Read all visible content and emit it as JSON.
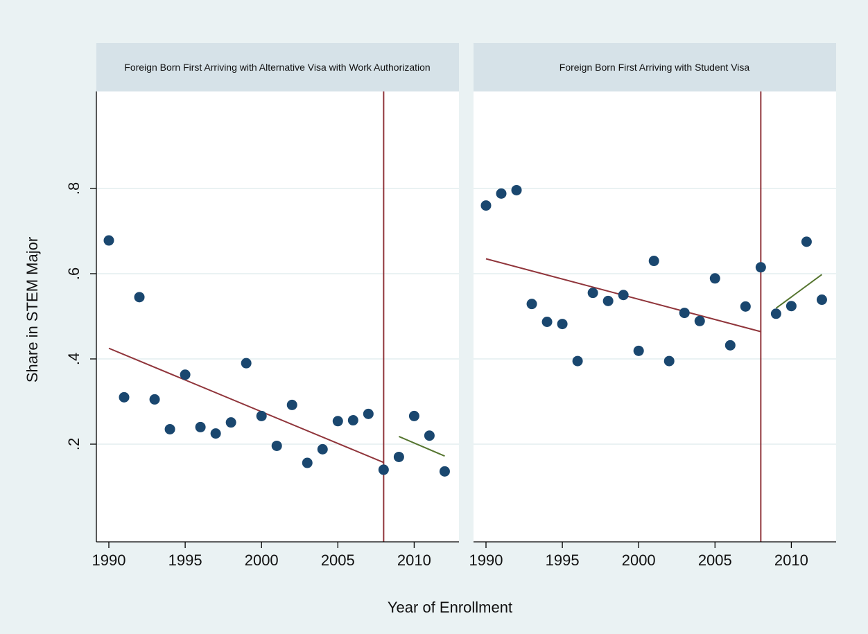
{
  "colors": {
    "figure_bg": "#eaf2f3",
    "panel_bg": "#ffffff",
    "header_bg": "#d6e2e8",
    "gridline": "#eaf2f3",
    "points": "#1a476f",
    "pre_fit": "#90353b",
    "post_fit": "#55752f",
    "cutoff_line": "#90353b"
  },
  "chart_data": {
    "type": "scatter",
    "ylabel": "Share in STEM Major",
    "xlabel": "Year of Enrollment",
    "y_ticks": [
      0.2,
      0.4,
      0.6,
      0.8
    ],
    "y_tick_labels": [
      ".2",
      ".4",
      ".6",
      ".8"
    ],
    "x_ticks": [
      1990,
      1995,
      2000,
      2005,
      2010
    ],
    "x_tick_labels": [
      "1990",
      "1995",
      "2000",
      "2005",
      "2010"
    ],
    "xlim": [
      1989.5,
      2012.5
    ],
    "ylim": [
      0.0,
      1.0
    ],
    "grid": true,
    "cutoff_year": 2008,
    "panels": [
      {
        "title": "Foreign Born First Arriving with Alternative Visa with Work Authorization",
        "points": [
          {
            "x": 1990,
            "y": 0.678
          },
          {
            "x": 1991,
            "y": 0.31
          },
          {
            "x": 1992,
            "y": 0.545
          },
          {
            "x": 1993,
            "y": 0.305
          },
          {
            "x": 1994,
            "y": 0.235
          },
          {
            "x": 1995,
            "y": 0.363
          },
          {
            "x": 1996,
            "y": 0.24
          },
          {
            "x": 1997,
            "y": 0.225
          },
          {
            "x": 1998,
            "y": 0.251
          },
          {
            "x": 1999,
            "y": 0.39
          },
          {
            "x": 2000,
            "y": 0.266
          },
          {
            "x": 2001,
            "y": 0.196
          },
          {
            "x": 2002,
            "y": 0.292
          },
          {
            "x": 2003,
            "y": 0.156
          },
          {
            "x": 2004,
            "y": 0.188
          },
          {
            "x": 2005,
            "y": 0.254
          },
          {
            "x": 2006,
            "y": 0.256
          },
          {
            "x": 2007,
            "y": 0.271
          },
          {
            "x": 2008,
            "y": 0.14
          },
          {
            "x": 2009,
            "y": 0.17
          },
          {
            "x": 2010,
            "y": 0.266
          },
          {
            "x": 2011,
            "y": 0.22
          },
          {
            "x": 2012,
            "y": 0.136
          }
        ],
        "pre_fit": {
          "x": [
            1990,
            2008
          ],
          "y": [
            0.425,
            0.157
          ]
        },
        "post_fit": {
          "x": [
            2009,
            2012
          ],
          "y": [
            0.218,
            0.172
          ]
        }
      },
      {
        "title": "Foreign Born First Arriving with Student Visa",
        "points": [
          {
            "x": 1990,
            "y": 0.76
          },
          {
            "x": 1991,
            "y": 0.788
          },
          {
            "x": 1992,
            "y": 0.796
          },
          {
            "x": 1993,
            "y": 0.529
          },
          {
            "x": 1994,
            "y": 0.487
          },
          {
            "x": 1995,
            "y": 0.482
          },
          {
            "x": 1996,
            "y": 0.395
          },
          {
            "x": 1997,
            "y": 0.555
          },
          {
            "x": 1998,
            "y": 0.536
          },
          {
            "x": 1999,
            "y": 0.55
          },
          {
            "x": 2000,
            "y": 0.419
          },
          {
            "x": 2001,
            "y": 0.63
          },
          {
            "x": 2002,
            "y": 0.395
          },
          {
            "x": 2003,
            "y": 0.508
          },
          {
            "x": 2004,
            "y": 0.489
          },
          {
            "x": 2005,
            "y": 0.589
          },
          {
            "x": 2006,
            "y": 0.432
          },
          {
            "x": 2007,
            "y": 0.523
          },
          {
            "x": 2008,
            "y": 0.615
          },
          {
            "x": 2009,
            "y": 0.506
          },
          {
            "x": 2010,
            "y": 0.524
          },
          {
            "x": 2011,
            "y": 0.675
          },
          {
            "x": 2012,
            "y": 0.539
          }
        ],
        "pre_fit": {
          "x": [
            1990,
            2008
          ],
          "y": [
            0.635,
            0.464
          ]
        },
        "post_fit": {
          "x": [
            2009,
            2012
          ],
          "y": [
            0.519,
            0.598
          ]
        }
      }
    ]
  }
}
